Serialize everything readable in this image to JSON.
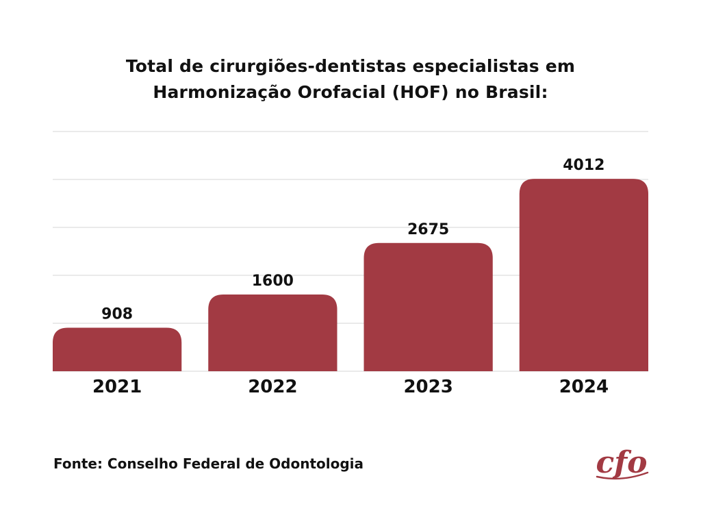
{
  "header": {
    "title_line1": "Total de cirurgiões-dentistas especialistas em",
    "title_line2": "Harmonização Orofacial (HOF) no Brasil:"
  },
  "chart_data": {
    "type": "bar",
    "categories": [
      "2021",
      "2022",
      "2023",
      "2024"
    ],
    "values": [
      908,
      1600,
      2675,
      4012
    ],
    "title": "Total de cirurgiões-dentistas especialistas em Harmonização Orofacial (HOF) no Brasil:",
    "xlabel": "",
    "ylabel": "",
    "ylim": [
      0,
      5000
    ],
    "grid": true,
    "bar_color": "#a23a43",
    "grid_color": "#d4d4d4",
    "data_labels": true
  },
  "footer": {
    "source": "Fonte: Conselho Federal de Odontologia",
    "logo_text": "cfo"
  },
  "colors": {
    "bar": "#a23a43",
    "text": "#111111",
    "grid": "#d4d4d4"
  }
}
